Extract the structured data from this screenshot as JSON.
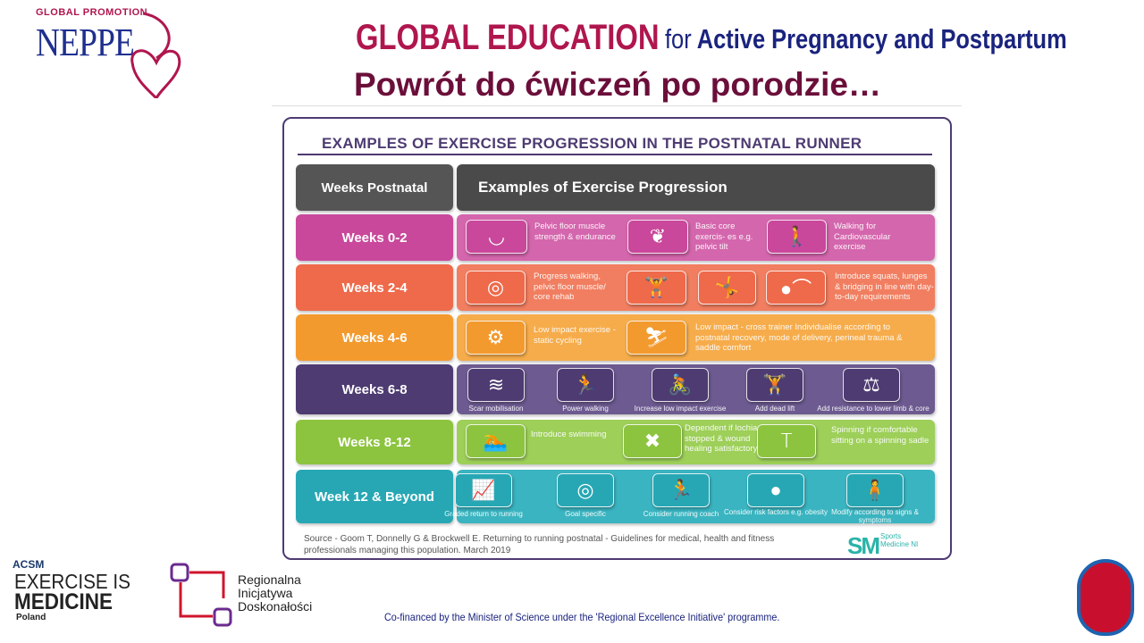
{
  "header": {
    "logo_small": "GLOBAL PROMOTION",
    "logo": "NEPPE",
    "title_main": "GLOBAL EDUCATION",
    "title_for": "for",
    "title_rest": "Active Pregnancy and Postpartum",
    "subtitle": "Powrót do ćwiczeń po porodzie…"
  },
  "infographic": {
    "title": "EXAMPLES OF EXERCISE PROGRESSION IN THE POSTNATAL RUNNER",
    "col_weeks": "Weeks Postnatal",
    "col_examples": "Examples of Exercise Progression",
    "rows": [
      {
        "label": "Weeks 0-2",
        "color": "#c9489b",
        "items": [
          {
            "icon": "bladder-icon",
            "text": "Pelvic floor muscle strength & endurance"
          },
          {
            "icon": "pelvis-icon",
            "text": "Basic core exercis- es e.g. pelvic tilt"
          },
          {
            "icon": "walking-icon",
            "text": "Walking for Cardiovascular exercise"
          }
        ]
      },
      {
        "label": "Weeks 2-4",
        "color": "#ee6a4b",
        "items": [
          {
            "icon": "mat-icon",
            "text": "Progress walking, pelvic floor muscle/ core rehab"
          },
          {
            "icon": "squat-icon"
          },
          {
            "icon": "lunge-icon"
          },
          {
            "icon": "bridge-icon",
            "text": "Introduce squats, lunges & bridging in line with day-to-day requirements"
          }
        ]
      },
      {
        "label": "Weeks 4-6",
        "color": "#f39a2e",
        "items": [
          {
            "icon": "static-bike-icon",
            "text": "Low impact exercise - static cycling"
          },
          {
            "icon": "cross-trainer-icon",
            "text": "Low impact - cross trainer Individualise according to postnatal recovery, mode of delivery, perineal trauma & saddle comfort"
          }
        ]
      },
      {
        "label": "Weeks 6-8",
        "color": "#4e3b72",
        "items": [
          {
            "icon": "scar-icon",
            "text": "Scar mobilisation"
          },
          {
            "icon": "power-walking-icon",
            "text": "Power walking"
          },
          {
            "icon": "cycling-icon",
            "text": "Increase low impact exercise"
          },
          {
            "icon": "deadlift-icon",
            "text": "Add dead lift"
          },
          {
            "icon": "dumbbell-icon",
            "text": "Add resistance to lower limb & core"
          }
        ]
      },
      {
        "label": "Weeks 8-12",
        "color": "#8cc43f",
        "items": [
          {
            "icon": "swimming-icon",
            "text": "Introduce swimming"
          },
          {
            "icon": "bandage-icon",
            "text": "Dependent if lochia stopped & wound healing satisfactory"
          },
          {
            "icon": "saddle-icon",
            "text": "Spinning if comfortable sitting on a spinning sadle"
          }
        ]
      },
      {
        "label": "Week 12 & Beyond",
        "color": "#27a7b4",
        "items": [
          {
            "icon": "bar-chart-icon",
            "text": "Graded return to running"
          },
          {
            "icon": "target-icon",
            "text": "Goal specific"
          },
          {
            "icon": "coach-icon",
            "text": "Consider running coach"
          },
          {
            "icon": "person-icon",
            "text": "Consider risk factors e.g. obesity"
          },
          {
            "icon": "fatigue-icon",
            "text": "Modify according to signs & symptoms"
          }
        ]
      }
    ],
    "source": "Source - Goom T, Donnelly G & Brockwell E. Returning to running postnatal - Guidelines for medical, health and fitness professionals managing this population. March 2019",
    "sm_logo": "SM",
    "sm_text": "Sports Medicine NI"
  },
  "footer": {
    "acsm": "ACSM",
    "eim_line1": "EXERCISE IS",
    "eim_line2": "MEDICINE",
    "eim_line3": "Poland",
    "rid": [
      "Regionalna",
      "Inicjatywa",
      "Doskonałości"
    ],
    "cofinanced": "Co-financed by the Minister of Science under the 'Regional Excellence Initiative' programme."
  }
}
